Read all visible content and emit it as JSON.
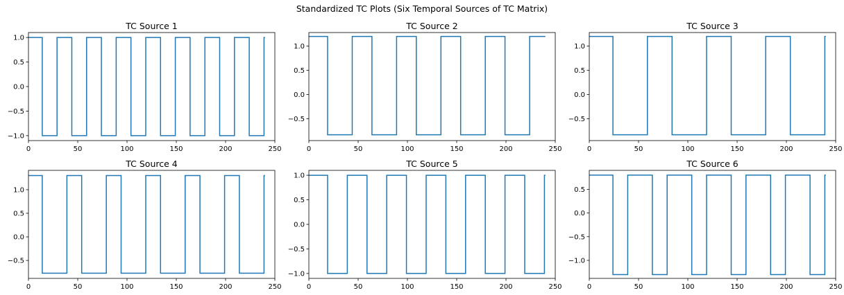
{
  "figure": {
    "suptitle": "Standardized TC Plots (Six Temporal Sources of TC Matrix)"
  },
  "colors": {
    "line": "#1f77b4",
    "axes": "#000000",
    "background": "#ffffff"
  },
  "chart_data": [
    {
      "type": "line",
      "title": "TC Source 1",
      "xlabel": "",
      "ylabel": "",
      "xlim": [
        0,
        250
      ],
      "ylim": [
        -1.1,
        1.1
      ],
      "xticks": [
        0,
        50,
        100,
        150,
        200,
        250
      ],
      "yticks": [
        -1.0,
        -0.5,
        0.0,
        0.5,
        1.0
      ],
      "ytick_labels": [
        "−1.0",
        "−0.5",
        "0.0",
        "0.5",
        "1.0"
      ],
      "grid": false,
      "high": 1.0,
      "low": -1.0,
      "onset_period": 30,
      "on_duration": 15,
      "length": 240
    },
    {
      "type": "line",
      "title": "TC Source 2",
      "xlabel": "",
      "ylabel": "",
      "xlim": [
        0,
        250
      ],
      "ylim": [
        -0.95,
        1.28
      ],
      "xticks": [
        0,
        50,
        100,
        150,
        200,
        250
      ],
      "yticks": [
        -0.5,
        0.0,
        0.5,
        1.0
      ],
      "ytick_labels": [
        "−0.5",
        "0.0",
        "0.5",
        "1.0"
      ],
      "grid": false,
      "high": 1.2,
      "low": -0.83,
      "onset_period": 45,
      "on_duration": 20,
      "length": 240
    },
    {
      "type": "line",
      "title": "TC Source 3",
      "xlabel": "",
      "ylabel": "",
      "xlim": [
        0,
        250
      ],
      "ylim": [
        -0.95,
        1.28
      ],
      "xticks": [
        0,
        50,
        100,
        150,
        200,
        250
      ],
      "yticks": [
        -0.5,
        0.0,
        0.5,
        1.0
      ],
      "ytick_labels": [
        "−0.5",
        "0.0",
        "0.5",
        "1.0"
      ],
      "grid": false,
      "high": 1.2,
      "low": -0.83,
      "onset_period": 60,
      "on_duration": 25,
      "length": 240
    },
    {
      "type": "line",
      "title": "TC Source 4",
      "xlabel": "",
      "ylabel": "",
      "xlim": [
        0,
        250
      ],
      "ylim": [
        -0.88,
        1.41
      ],
      "xticks": [
        0,
        50,
        100,
        150,
        200,
        250
      ],
      "yticks": [
        -0.5,
        0.0,
        0.5,
        1.0
      ],
      "ytick_labels": [
        "−0.5",
        "0.0",
        "0.5",
        "1.0"
      ],
      "grid": false,
      "high": 1.3,
      "low": -0.77,
      "onset_period": 40,
      "on_duration": 15,
      "length": 240
    },
    {
      "type": "line",
      "title": "TC Source 5",
      "xlabel": "",
      "ylabel": "",
      "xlim": [
        0,
        250
      ],
      "ylim": [
        -1.1,
        1.1
      ],
      "xticks": [
        0,
        50,
        100,
        150,
        200,
        250
      ],
      "yticks": [
        -1.0,
        -0.5,
        0.0,
        0.5,
        1.0
      ],
      "ytick_labels": [
        "−1.0",
        "−0.5",
        "0.0",
        "0.5",
        "1.0"
      ],
      "grid": false,
      "high": 1.0,
      "low": -1.0,
      "onset_period": 40,
      "on_duration": 20,
      "length": 240
    },
    {
      "type": "line",
      "title": "TC Source 6",
      "xlabel": "",
      "ylabel": "",
      "xlim": [
        0,
        250
      ],
      "ylim": [
        -1.38,
        0.9
      ],
      "xticks": [
        0,
        50,
        100,
        150,
        200,
        250
      ],
      "yticks": [
        -1.0,
        -0.5,
        0.0,
        0.5
      ],
      "ytick_labels": [
        "−1.0",
        "−0.5",
        "0.0",
        "0.5"
      ],
      "grid": false,
      "high": 0.8,
      "low": -1.3,
      "onset_period": 40,
      "on_duration": 25,
      "length": 240
    }
  ]
}
